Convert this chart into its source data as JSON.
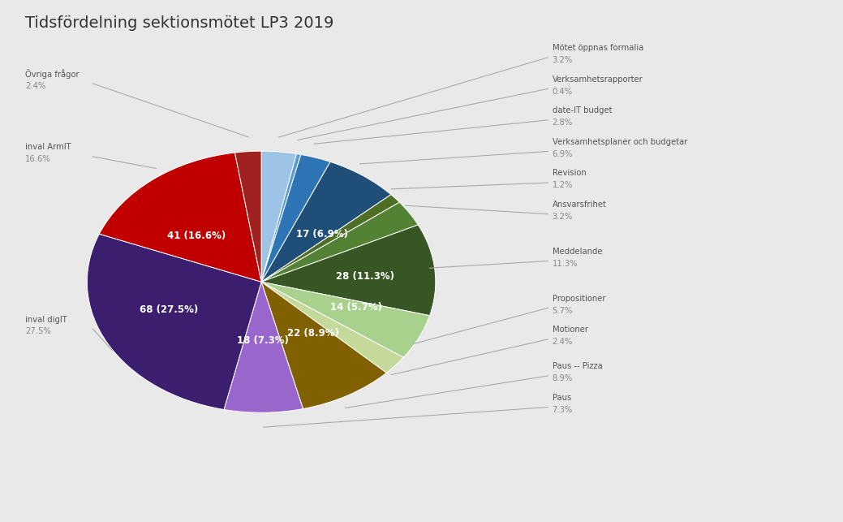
{
  "title": "Tidsfördelning sektionsmötet LP3 2019",
  "background_color": "#e9e9e9",
  "slices": [
    {
      "label": "Mötet öppnas formalia",
      "value": 8,
      "pct": "3.2%",
      "color": "#9dc3e6"
    },
    {
      "label": "Verksamhetsrapporter",
      "value": 1,
      "pct": "0.4%",
      "color": "#5b9bd5"
    },
    {
      "label": "date-IT budget",
      "value": 7,
      "pct": "2.8%",
      "color": "#2e75b6"
    },
    {
      "label": "Verksamhetsplaner och budgetar",
      "value": 17,
      "pct": "6.9%",
      "color": "#1f4e79"
    },
    {
      "label": "Revision",
      "value": 3,
      "pct": "1.2%",
      "color": "#4e6e25"
    },
    {
      "label": "Ansvarsfrihet",
      "value": 8,
      "pct": "3.2%",
      "color": "#548235"
    },
    {
      "label": "Meddelande",
      "value": 28,
      "pct": "11.3%",
      "color": "#375623"
    },
    {
      "label": "Propositioner",
      "value": 14,
      "pct": "5.7%",
      "color": "#a9d18e"
    },
    {
      "label": "Motioner",
      "value": 6,
      "pct": "2.4%",
      "color": "#c5d99a"
    },
    {
      "label": "Paus -- Pizza",
      "value": 22,
      "pct": "8.9%",
      "color": "#806000"
    },
    {
      "label": "Paus",
      "value": 18,
      "pct": "7.3%",
      "color": "#9966cc"
    },
    {
      "label": "inval digIT",
      "value": 68,
      "pct": "27.5%",
      "color": "#3b1f6e"
    },
    {
      "label": "inval ArmIT",
      "value": 41,
      "pct": "16.6%",
      "color": "#c00000"
    },
    {
      "label": "Övriga frågor",
      "value": 6,
      "pct": "2.4%",
      "color": "#a12020"
    }
  ],
  "right_annotations": [
    {
      "slice_idx": 0,
      "name": "Mötet öppnas formalia",
      "pct": "3.2%"
    },
    {
      "slice_idx": 1,
      "name": "Verksamhetsrapporter",
      "pct": "0.4%"
    },
    {
      "slice_idx": 2,
      "name": "date-IT budget",
      "pct": "2.8%"
    },
    {
      "slice_idx": 3,
      "name": "Verksamhetsplaner och budgetar",
      "pct": "6.9%"
    },
    {
      "slice_idx": 4,
      "name": "Revision",
      "pct": "1.2%"
    },
    {
      "slice_idx": 5,
      "name": "Ansvarsfrihet",
      "pct": "3.2%"
    },
    {
      "slice_idx": 6,
      "name": "Meddelande",
      "pct": "11.3%"
    },
    {
      "slice_idx": 7,
      "name": "Propositioner",
      "pct": "5.7%"
    },
    {
      "slice_idx": 8,
      "name": "Motioner",
      "pct": "2.4%"
    },
    {
      "slice_idx": 9,
      "name": "Paus -- Pizza",
      "pct": "8.9%"
    },
    {
      "slice_idx": 10,
      "name": "Paus",
      "pct": "7.3%"
    }
  ],
  "left_annotations": [
    {
      "slice_idx": 13,
      "name": "Övriga frågor",
      "pct": "2.4%"
    },
    {
      "slice_idx": 12,
      "name": "inval ArmIT",
      "pct": "16.6%"
    },
    {
      "slice_idx": 11,
      "name": "inval digIT",
      "pct": "27.5%"
    }
  ],
  "inner_labels": [
    {
      "idx": 3,
      "text": "17 (6.9%)"
    },
    {
      "idx": 6,
      "text": "28 (11.3%)"
    },
    {
      "idx": 7,
      "text": "14 (5.7%)"
    },
    {
      "idx": 9,
      "text": "22 (8.9%)"
    },
    {
      "idx": 10,
      "text": "18 (7.3%)"
    },
    {
      "idx": 11,
      "text": "68 (27.5%)"
    },
    {
      "idx": 12,
      "text": "41 (16.6%)"
    }
  ]
}
